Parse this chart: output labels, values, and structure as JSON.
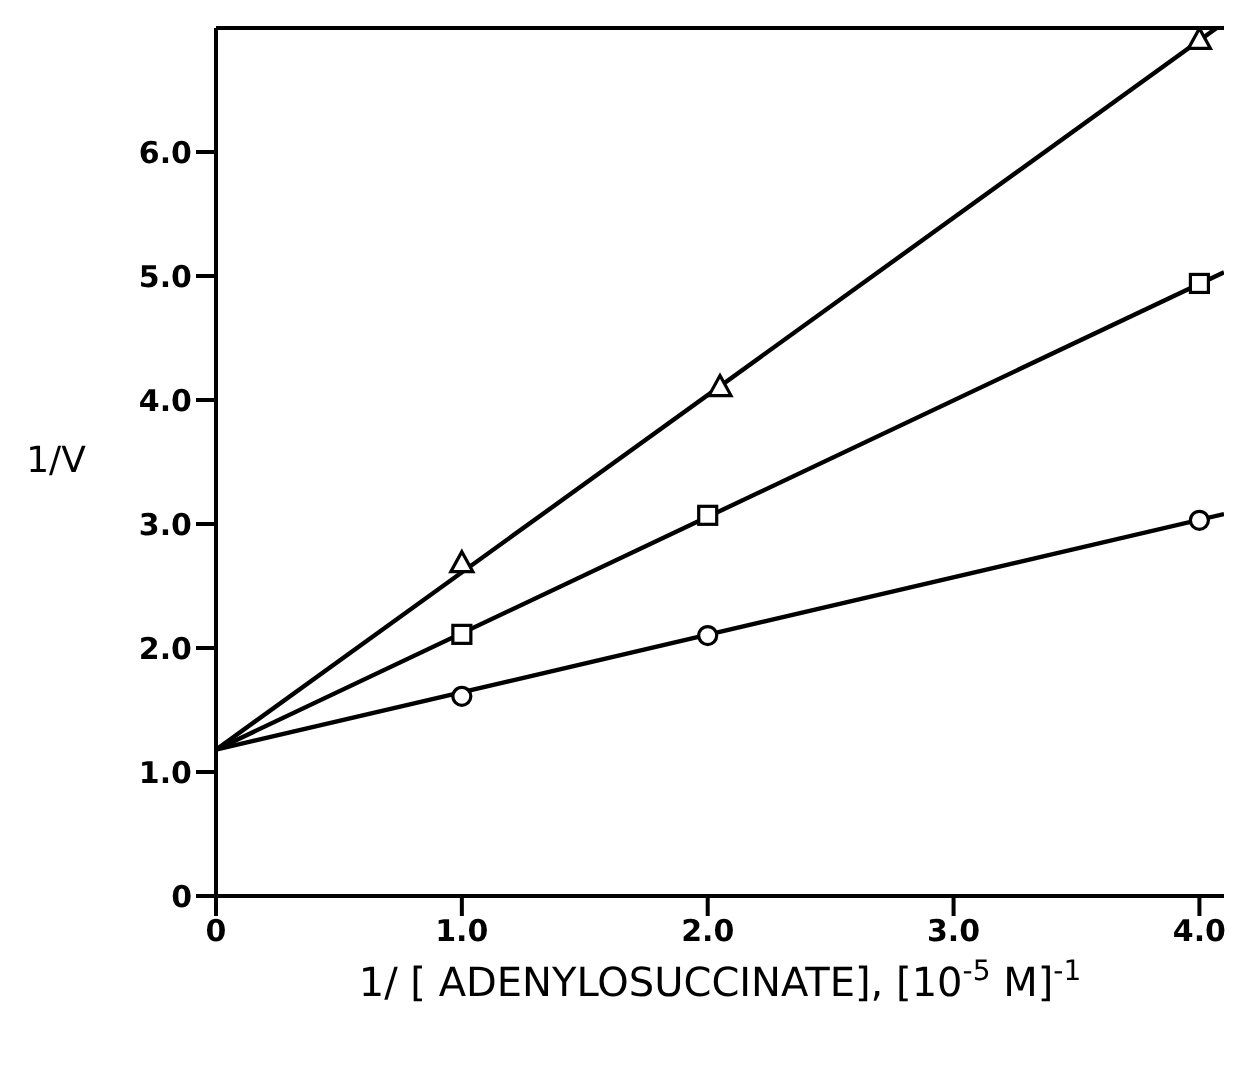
{
  "chart_data": {
    "type": "scatter",
    "xlabel": "1/ [ ADENYLOSUCCINATE], [10$^{-5}$ M]$^{-1}$",
    "ylabel": "1/V",
    "xlim": [
      0,
      4.1
    ],
    "ylim": [
      0,
      7
    ],
    "xticks": [
      0,
      {
        "value": 1,
        "label": "1.0"
      },
      {
        "value": 2,
        "label": "2.0"
      },
      {
        "value": 3,
        "label": "3.0"
      },
      {
        "value": 4,
        "label": "4.0"
      }
    ],
    "yticks": [
      0,
      {
        "value": 1,
        "label": "1.0"
      },
      {
        "value": 2,
        "label": "2.0"
      },
      {
        "value": 3,
        "label": "3.0"
      },
      {
        "value": 4,
        "label": "4.0"
      },
      {
        "value": 5,
        "label": "5.0"
      },
      {
        "value": 6,
        "label": "6.0"
      }
    ],
    "grid": false,
    "legend": false,
    "line_style": "solid",
    "series": [
      {
        "marker": "circle",
        "color": "#000000",
        "x": [
          1,
          2,
          4
        ],
        "values": [
          1.61,
          2.1,
          3.03
        ]
      },
      {
        "marker": "square",
        "color": "#000000",
        "x": [
          1,
          2,
          4
        ],
        "values": [
          2.11,
          3.07,
          4.94
        ]
      },
      {
        "marker": "triangle",
        "color": "#000000",
        "x": [
          1,
          2.05,
          4
        ],
        "values": [
          2.68,
          4.1,
          6.9
        ]
      },
      {
        "type": "line",
        "marker": "none",
        "color": "#000000",
        "x": [
          0,
          4.1
        ],
        "values": [
          1.18,
          3.08
        ]
      },
      {
        "type": "line",
        "marker": "none",
        "color": "#000000",
        "x": [
          0,
          4.1
        ],
        "values": [
          1.18,
          5.03
        ]
      },
      {
        "type": "line",
        "marker": "none",
        "color": "#000000",
        "x": [
          0,
          4.07
        ],
        "values": [
          1.18,
          7.0
        ]
      }
    ]
  }
}
